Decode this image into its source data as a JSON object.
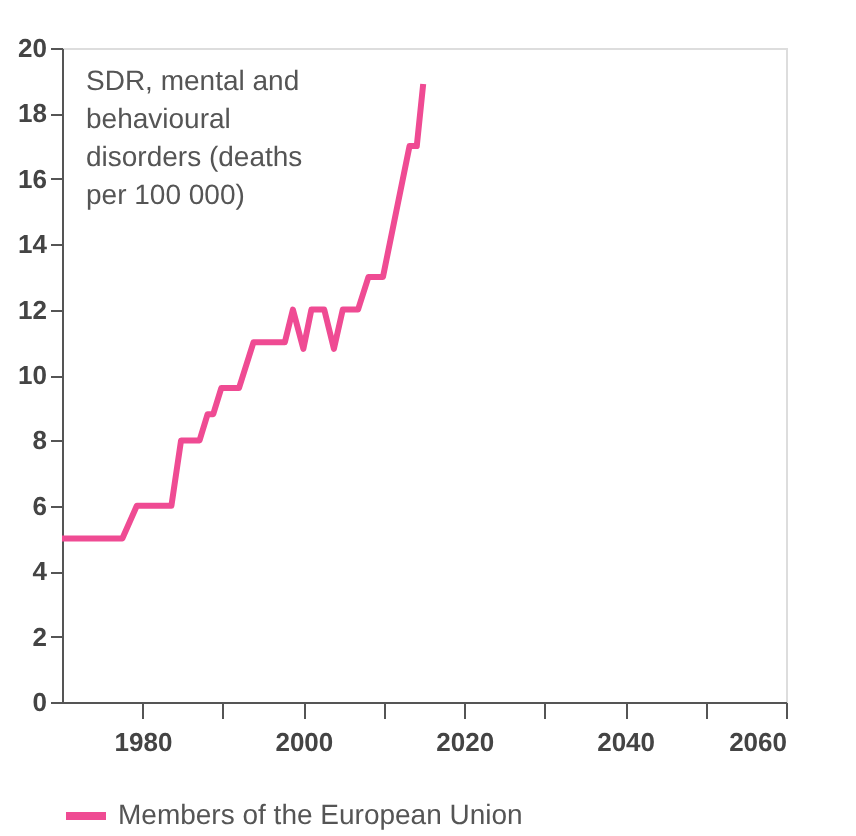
{
  "chart_data": {
    "type": "line",
    "ylabel": "SDR, mental and behavioural disorders (deaths per 100 000)",
    "x": [
      1970,
      1977.5,
      1979.3,
      1983.6,
      1984.8,
      1987.1,
      1988.1,
      1988.8,
      1989.8,
      1992,
      1993.8,
      1997.7,
      1998.7,
      2000,
      2001,
      2002.6,
      2003.8,
      2004.9,
      2006.8,
      2008.1,
      2009.9,
      2013.2,
      2014.1,
      2014.9
    ],
    "series": [
      {
        "name": "Members of the European Union",
        "color": "#ef4b93",
        "values": [
          5,
          5,
          6,
          6,
          8,
          8,
          8.8,
          8.8,
          9.6,
          9.6,
          11,
          11,
          12,
          10.8,
          12,
          12,
          10.8,
          12,
          12,
          13,
          13,
          17,
          17,
          18.9
        ]
      }
    ],
    "xlim": [
      1970,
      2060
    ],
    "ylim": [
      0,
      20
    ],
    "xticks": [
      {
        "value": 1980,
        "label": "1980"
      },
      {
        "value": 1990,
        "label": null
      },
      {
        "value": 2000,
        "label": "2000"
      },
      {
        "value": 2010,
        "label": null
      },
      {
        "value": 2020,
        "label": "2020"
      },
      {
        "value": 2030,
        "label": null
      },
      {
        "value": 2040,
        "label": "2040"
      },
      {
        "value": 2050,
        "label": null
      },
      {
        "value": 2060,
        "label": "2060"
      }
    ],
    "yticks": [
      0,
      2,
      4,
      6,
      8,
      10,
      12,
      14,
      16,
      18,
      20
    ],
    "grid": false,
    "legend": "bottom",
    "line_style": "solid"
  }
}
